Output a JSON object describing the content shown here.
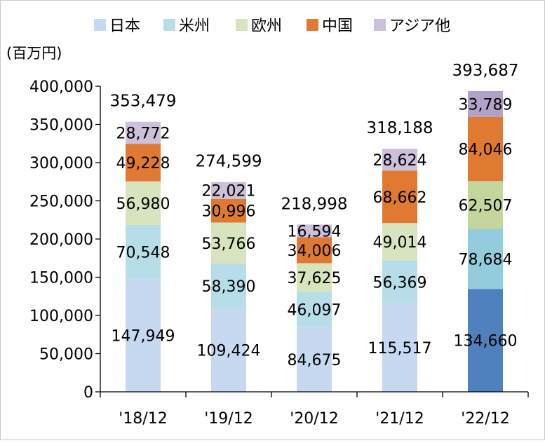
{
  "chart_data": {
    "type": "bar",
    "stacked": true,
    "unit_label": "(百万円)",
    "categories": [
      "'18/12",
      "'19/12",
      "'20/12",
      "'21/12",
      "'22/12"
    ],
    "ylim": [
      0,
      400000
    ],
    "yticks": [
      0,
      50000,
      100000,
      150000,
      200000,
      250000,
      300000,
      350000,
      400000
    ],
    "ytick_labels": [
      "0",
      "50,000",
      "100,000",
      "150,000",
      "200,000",
      "250,000",
      "300,000",
      "350,000",
      "400,000"
    ],
    "legend_position": "top",
    "series": [
      {
        "name": "日本",
        "color": "#c6d9f1",
        "highlight_color": "#4f81bd",
        "values": [
          147949,
          109424,
          84675,
          115517,
          134660
        ],
        "labels": [
          "147,949",
          "109,424",
          "84,675",
          "115,517",
          "134,660"
        ]
      },
      {
        "name": "米州",
        "color": "#b7dee8",
        "highlight_color": "#93cddd",
        "values": [
          70548,
          58390,
          46097,
          56369,
          78684
        ],
        "labels": [
          "70,548",
          "58,390",
          "46,097",
          "56,369",
          "78,684"
        ]
      },
      {
        "name": "欧州",
        "color": "#d7e4bd",
        "highlight_color": "#c3d69b",
        "values": [
          56980,
          53766,
          37625,
          49014,
          62507
        ],
        "labels": [
          "56,980",
          "53,766",
          "37,625",
          "49,014",
          "62,507"
        ]
      },
      {
        "name": "中国",
        "color": "#e07a33",
        "highlight_color": "#e07a33",
        "values": [
          49228,
          30996,
          34006,
          68662,
          84046
        ],
        "labels": [
          "49,228",
          "30,996",
          "34,006",
          "68,662",
          "84,046"
        ]
      },
      {
        "name": "アジア他",
        "color": "#ccc0da",
        "highlight_color": "#b3a2c7",
        "values": [
          28772,
          22021,
          16594,
          28624,
          33789
        ],
        "labels": [
          "28,772",
          "22,021",
          "16,594",
          "28,624",
          "33,789"
        ]
      }
    ],
    "highlight_category_index": 4,
    "totals": [
      353479,
      274599,
      218998,
      318188,
      393687
    ],
    "total_labels": [
      "353,479",
      "274,599",
      "218,998",
      "318,188",
      "393,687"
    ]
  }
}
